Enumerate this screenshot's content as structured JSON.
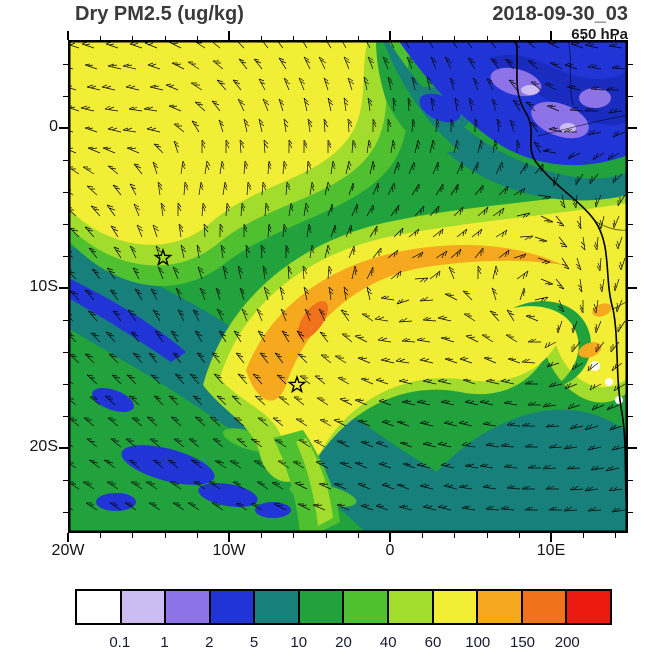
{
  "header": {
    "title": "Dry PM2.5 (ug/kg)",
    "datetime": "2018-09-30_03",
    "level": "650 hPa"
  },
  "chart_data": {
    "type": "heatmap",
    "title": "Dry PM2.5 (ug/kg)",
    "units": "ug/kg",
    "valid_time": "2018-09-30_03",
    "pressure_level": "650 hPa",
    "projection": "lat-lon map of tropical SE Atlantic and west-central Africa",
    "x_axis": {
      "ticks": [
        "20W",
        "10W",
        "0",
        "10E"
      ]
    },
    "y_axis": {
      "ticks": [
        "0",
        "10S",
        "20S"
      ]
    },
    "colorbar": {
      "levels": [
        "0.1",
        "1",
        "2",
        "5",
        "10",
        "20",
        "40",
        "60",
        "100",
        "150",
        "200"
      ],
      "colors": [
        "#ffffff",
        "#cdbcf2",
        "#8d72e8",
        "#2135d6",
        "#17807a",
        "#21a23c",
        "#4fc02f",
        "#a2dc2c",
        "#f1ee35",
        "#f6a81f",
        "#f0731b",
        "#ea1a10"
      ]
    },
    "overlays": {
      "wind_barbs": "wind barbs at 650 hPa",
      "coastline": "west African coastline with country borders",
      "star_markers": [
        {
          "lat": "8S",
          "lon": "14W"
        },
        {
          "lat": "16S",
          "lon": "6W"
        }
      ]
    },
    "field_regions": [
      {
        "area": "northwest quadrant plume",
        "approx_value_ug_kg": "60-100"
      },
      {
        "area": "central arc plume core",
        "approx_value_ug_kg": "100-150"
      },
      {
        "area": "Gulf of Guinea / northeast region",
        "approx_value_ug_kg": "1-5"
      },
      {
        "area": "southwest diagonal band",
        "approx_value_ug_kg": "5-10"
      },
      {
        "area": "southwest blue patches",
        "approx_value_ug_kg": "2-5"
      },
      {
        "area": "coastal spots near 12S",
        "approx_value_ug_kg": "<0.1"
      },
      {
        "area": "background",
        "approx_value_ug_kg": "20-60"
      }
    ]
  }
}
